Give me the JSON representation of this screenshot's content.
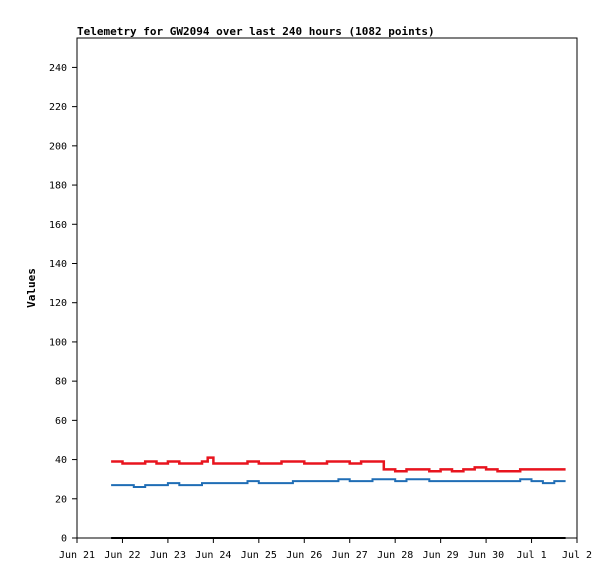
{
  "chart_data": {
    "type": "line",
    "title": "Telemetry for GW2094 over last 240 hours (1082 points)",
    "xlabel": "",
    "ylabel": "Values",
    "xlim": [
      "2023-06-21",
      "2023-07-02"
    ],
    "ylim": [
      0,
      255
    ],
    "x_tick_labels": [
      "Jun 21",
      "Jun 22",
      "Jun 23",
      "Jun 24",
      "Jun 25",
      "Jun 26",
      "Jun 27",
      "Jun 28",
      "Jun 29",
      "Jun 30",
      "Jul 1",
      "Jul 2"
    ],
    "y_ticks": [
      0,
      20,
      40,
      60,
      80,
      100,
      120,
      140,
      160,
      180,
      200,
      220,
      240
    ],
    "grid": false,
    "legend": "none",
    "series": [
      {
        "color": "#e8141e",
        "x": [
          "2023-06-21 18:00",
          "2023-06-22 00:00",
          "2023-06-22 06:00",
          "2023-06-22 12:00",
          "2023-06-22 18:00",
          "2023-06-23 00:00",
          "2023-06-23 06:00",
          "2023-06-23 12:00",
          "2023-06-23 18:00",
          "2023-06-23 21:00",
          "2023-06-24 00:00",
          "2023-06-24 06:00",
          "2023-06-24 12:00",
          "2023-06-24 18:00",
          "2023-06-25 00:00",
          "2023-06-25 06:00",
          "2023-06-25 12:00",
          "2023-06-25 18:00",
          "2023-06-26 00:00",
          "2023-06-26 06:00",
          "2023-06-26 12:00",
          "2023-06-26 18:00",
          "2023-06-27 00:00",
          "2023-06-27 06:00",
          "2023-06-27 12:00",
          "2023-06-27 18:00",
          "2023-06-28 00:00",
          "2023-06-28 06:00",
          "2023-06-28 12:00",
          "2023-06-28 18:00",
          "2023-06-29 00:00",
          "2023-06-29 06:00",
          "2023-06-29 12:00",
          "2023-06-29 18:00",
          "2023-06-30 00:00",
          "2023-06-30 06:00",
          "2023-06-30 12:00",
          "2023-06-30 18:00",
          "2023-07-01 00:00",
          "2023-07-01 06:00",
          "2023-07-01 12:00",
          "2023-07-01 18:00"
        ],
        "y": [
          39,
          38,
          38,
          39,
          38,
          39,
          38,
          38,
          39,
          41,
          38,
          38,
          38,
          39,
          38,
          38,
          39,
          39,
          38,
          38,
          39,
          39,
          38,
          39,
          39,
          35,
          34,
          35,
          35,
          34,
          35,
          34,
          35,
          36,
          35,
          34,
          34,
          35,
          35,
          35,
          35,
          35
        ]
      },
      {
        "color": "#1f6db5",
        "x": [
          "2023-06-21 18:00",
          "2023-06-22 00:00",
          "2023-06-22 06:00",
          "2023-06-22 12:00",
          "2023-06-22 18:00",
          "2023-06-23 00:00",
          "2023-06-23 06:00",
          "2023-06-23 12:00",
          "2023-06-23 18:00",
          "2023-06-24 00:00",
          "2023-06-24 06:00",
          "2023-06-24 12:00",
          "2023-06-24 18:00",
          "2023-06-25 00:00",
          "2023-06-25 06:00",
          "2023-06-25 12:00",
          "2023-06-25 18:00",
          "2023-06-26 00:00",
          "2023-06-26 06:00",
          "2023-06-26 12:00",
          "2023-06-26 18:00",
          "2023-06-27 00:00",
          "2023-06-27 06:00",
          "2023-06-27 12:00",
          "2023-06-27 18:00",
          "2023-06-28 00:00",
          "2023-06-28 06:00",
          "2023-06-28 12:00",
          "2023-06-28 18:00",
          "2023-06-29 00:00",
          "2023-06-29 06:00",
          "2023-06-29 12:00",
          "2023-06-29 18:00",
          "2023-06-30 00:00",
          "2023-06-30 06:00",
          "2023-06-30 12:00",
          "2023-06-30 18:00",
          "2023-07-01 00:00",
          "2023-07-01 06:00",
          "2023-07-01 12:00",
          "2023-07-01 18:00"
        ],
        "y": [
          27,
          27,
          26,
          27,
          27,
          28,
          27,
          27,
          28,
          28,
          28,
          28,
          29,
          28,
          28,
          28,
          29,
          29,
          29,
          29,
          30,
          29,
          29,
          30,
          30,
          29,
          30,
          30,
          29,
          29,
          29,
          29,
          29,
          29,
          29,
          29,
          30,
          29,
          28,
          29,
          29
        ]
      },
      {
        "color": "#000000",
        "x": [
          "2023-06-21 18:00",
          "2023-07-01 18:00"
        ],
        "y": [
          0,
          0
        ]
      }
    ]
  }
}
